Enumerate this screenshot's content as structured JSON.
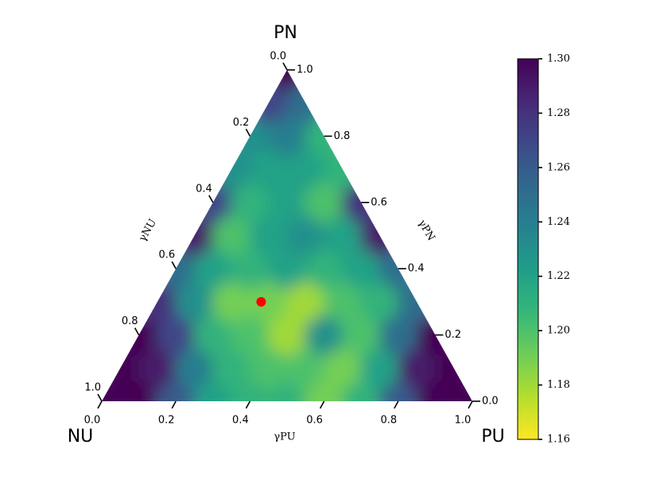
{
  "chart_data": {
    "type": "ternary-heatmap",
    "corner_labels": {
      "top": "PN",
      "left": "NU",
      "right": "PU"
    },
    "axis_labels": {
      "bottom": "γPU",
      "right": "γPN",
      "left": "γNU"
    },
    "pu_ticks": [
      {
        "value": 0,
        "label": "0.0"
      },
      0.2,
      0.4,
      0.6,
      0.8,
      {
        "value": 1,
        "label": "1.0"
      }
    ],
    "pn_ticks": [
      {
        "value": 0,
        "label": "0.0"
      },
      0.2,
      0.4,
      0.6,
      0.8,
      {
        "value": 1,
        "label": "1.0"
      }
    ],
    "nu_ticks": [
      {
        "value": 0,
        "label": "0.0"
      },
      0.2,
      0.4,
      0.6,
      0.8,
      {
        "value": 1,
        "label": "1.0"
      }
    ],
    "colormap": "viridis_r",
    "clim": [
      1.16,
      1.3
    ],
    "cticks": [
      1.16,
      1.18,
      {
        "value": 1.2,
        "label": "1.20"
      },
      1.22,
      1.24,
      1.26,
      1.28,
      {
        "value": 1.3,
        "label": "1.30"
      }
    ],
    "field": [
      [
        1.3,
        1.3,
        1.26,
        1.22,
        1.21,
        1.21,
        1.19,
        1.21,
        1.26,
        1.3,
        1.3
      ],
      [
        1.3,
        1.29,
        1.24,
        1.21,
        1.2,
        1.2,
        1.19,
        1.22,
        1.29,
        1.3
      ],
      [
        1.3,
        1.27,
        1.21,
        1.2,
        1.18,
        1.23,
        1.2,
        1.25,
        1.3
      ],
      [
        1.28,
        1.23,
        1.19,
        1.19,
        1.18,
        1.2,
        1.21,
        1.25
      ],
      [
        1.25,
        1.22,
        1.21,
        1.22,
        1.21,
        1.22,
        1.25
      ],
      [
        1.29,
        1.2,
        1.22,
        1.23,
        1.22,
        1.29
      ],
      [
        1.27,
        1.21,
        1.22,
        1.2,
        1.28
      ],
      [
        1.23,
        1.22,
        1.22,
        1.21
      ],
      [
        1.23,
        1.24,
        1.21
      ],
      [
        1.27,
        1.25
      ],
      [
        1.3
      ]
    ],
    "marker": {
      "pu": 0.28,
      "pn": 0.3,
      "nu": 0.42,
      "color": "red"
    }
  }
}
